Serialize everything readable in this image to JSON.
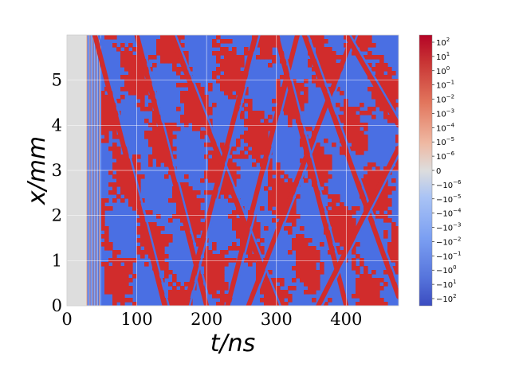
{
  "chart_data": {
    "type": "heatmap",
    "title": "",
    "xlabel": "t/ns",
    "ylabel": "x/mm",
    "xlim": [
      0,
      475
    ],
    "ylim": [
      0,
      6
    ],
    "x_ticks": [
      0,
      100,
      200,
      300,
      400
    ],
    "x_tick_labels": [
      "0",
      "100",
      "200",
      "300",
      "400"
    ],
    "y_ticks": [
      0,
      1,
      2,
      3,
      4,
      5
    ],
    "y_tick_labels": [
      "0",
      "1",
      "2",
      "3",
      "4",
      "5"
    ],
    "grid": true,
    "colormap": "coolwarm",
    "color_scale": "symlog",
    "color_range": [
      -200,
      200
    ],
    "colors": {
      "negative": "#4a6fe3",
      "zero": "#dddddd",
      "positive": "#d12c2c"
    },
    "quiet_region_end_t": 28,
    "onset_fringes_t": [
      28,
      48
    ],
    "colorbar": {
      "ticks": [
        {
          "base": "10",
          "exp": "2",
          "sign": ""
        },
        {
          "base": "10",
          "exp": "1",
          "sign": ""
        },
        {
          "base": "10",
          "exp": "0",
          "sign": ""
        },
        {
          "base": "10",
          "exp": "−1",
          "sign": ""
        },
        {
          "base": "10",
          "exp": "−2",
          "sign": ""
        },
        {
          "base": "10",
          "exp": "−3",
          "sign": ""
        },
        {
          "base": "10",
          "exp": "−4",
          "sign": ""
        },
        {
          "base": "10",
          "exp": "−5",
          "sign": ""
        },
        {
          "base": "10",
          "exp": "−6",
          "sign": ""
        },
        {
          "base": "0",
          "exp": "",
          "sign": ""
        },
        {
          "base": "10",
          "exp": "−6",
          "sign": "−"
        },
        {
          "base": "10",
          "exp": "−5",
          "sign": "−"
        },
        {
          "base": "10",
          "exp": "−4",
          "sign": "−"
        },
        {
          "base": "10",
          "exp": "−3",
          "sign": "−"
        },
        {
          "base": "10",
          "exp": "−2",
          "sign": "−"
        },
        {
          "base": "10",
          "exp": "−1",
          "sign": "−"
        },
        {
          "base": "10",
          "exp": "0",
          "sign": "−"
        },
        {
          "base": "10",
          "exp": "1",
          "sign": "−"
        },
        {
          "base": "10",
          "exp": "2",
          "sign": "−"
        }
      ]
    },
    "diagonal_streaks": [
      {
        "t": [
          40,
          140
        ],
        "x": [
          6.0,
          0.0
        ]
      },
      {
        "t": [
          100,
          200
        ],
        "x": [
          6.0,
          0.0
        ]
      },
      {
        "t": [
          150,
          300
        ],
        "x": [
          6.0,
          0.0
        ]
      },
      {
        "t": [
          170,
          270
        ],
        "x": [
          0.0,
          6.0
        ]
      },
      {
        "t": [
          230,
          330
        ],
        "x": [
          0.0,
          6.0
        ]
      },
      {
        "t": [
          260,
          410
        ],
        "x": [
          0.0,
          6.0
        ]
      },
      {
        "t": [
          300,
          400
        ],
        "x": [
          6.0,
          0.0
        ]
      },
      {
        "t": [
          340,
          475
        ],
        "x": [
          6.0,
          0.2
        ]
      },
      {
        "t": [
          360,
          475
        ],
        "x": [
          0.0,
          3.5
        ]
      },
      {
        "t": [
          400,
          475
        ],
        "x": [
          6.0,
          4.0
        ]
      }
    ]
  }
}
